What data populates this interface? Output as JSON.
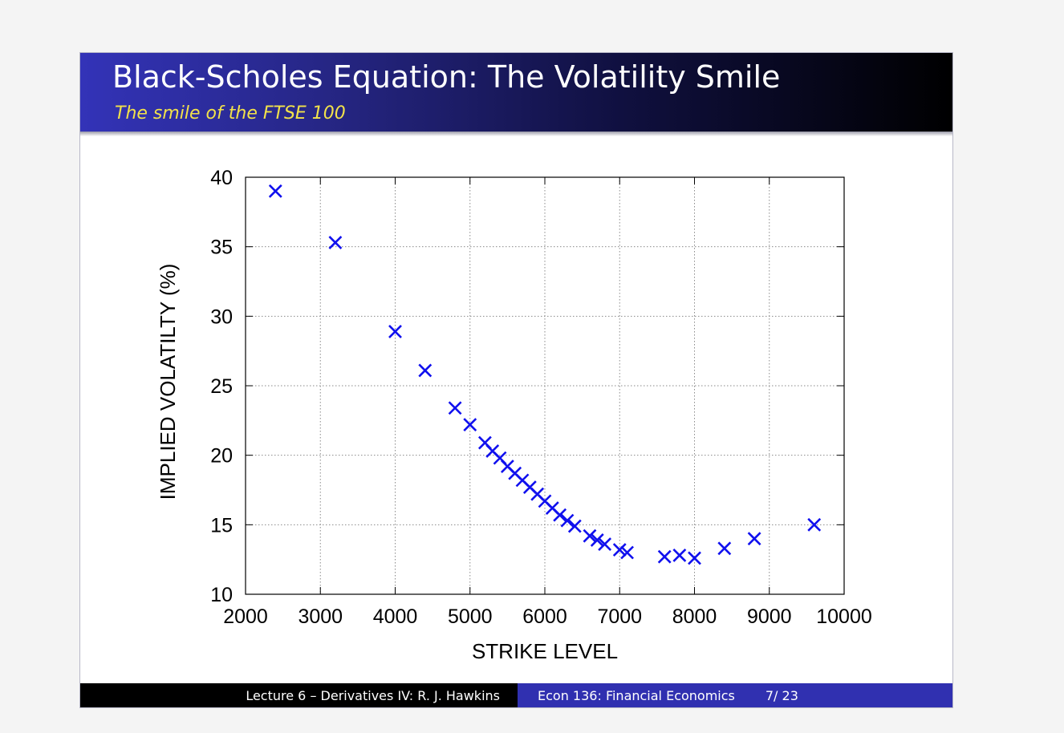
{
  "slide": {
    "title": "Black-Scholes Equation: The Volatility Smile",
    "subtitle": "The smile of the FTSE 100"
  },
  "footer": {
    "left": "Lecture 6 – Derivatives IV: R. J. Hawkins",
    "course": "Econ 136: Financial Economics",
    "page": "7/ 23"
  },
  "colors": {
    "header_start": "#3333b8",
    "header_end": "#000000",
    "subtitle": "#f2e24a",
    "marker": "#1010ee",
    "footer_accent": "#3030b0"
  },
  "chart_data": {
    "type": "scatter",
    "title": "",
    "xlabel": "STRIKE LEVEL",
    "ylabel": "IMPLIED VOLATILTY (%)",
    "xlim": [
      2000,
      10000
    ],
    "ylim": [
      10,
      40
    ],
    "xticks": [
      2000,
      3000,
      4000,
      5000,
      6000,
      7000,
      8000,
      9000,
      10000
    ],
    "yticks": [
      10,
      15,
      20,
      25,
      30,
      35,
      40
    ],
    "grid": true,
    "marker": "x",
    "x": [
      2400,
      3200,
      4000,
      4400,
      4800,
      5000,
      5200,
      5300,
      5400,
      5500,
      5600,
      5700,
      5800,
      5900,
      6000,
      6100,
      6200,
      6300,
      6400,
      6600,
      6700,
      6800,
      7000,
      7100,
      7600,
      7800,
      8000,
      8400,
      8800,
      9600
    ],
    "y": [
      39.0,
      35.3,
      28.9,
      26.1,
      23.4,
      22.2,
      20.9,
      20.3,
      19.8,
      19.2,
      18.7,
      18.2,
      17.7,
      17.2,
      16.7,
      16.2,
      15.7,
      15.3,
      14.9,
      14.2,
      13.9,
      13.6,
      13.2,
      13.0,
      12.7,
      12.8,
      12.6,
      13.3,
      14.0,
      15.0
    ]
  }
}
